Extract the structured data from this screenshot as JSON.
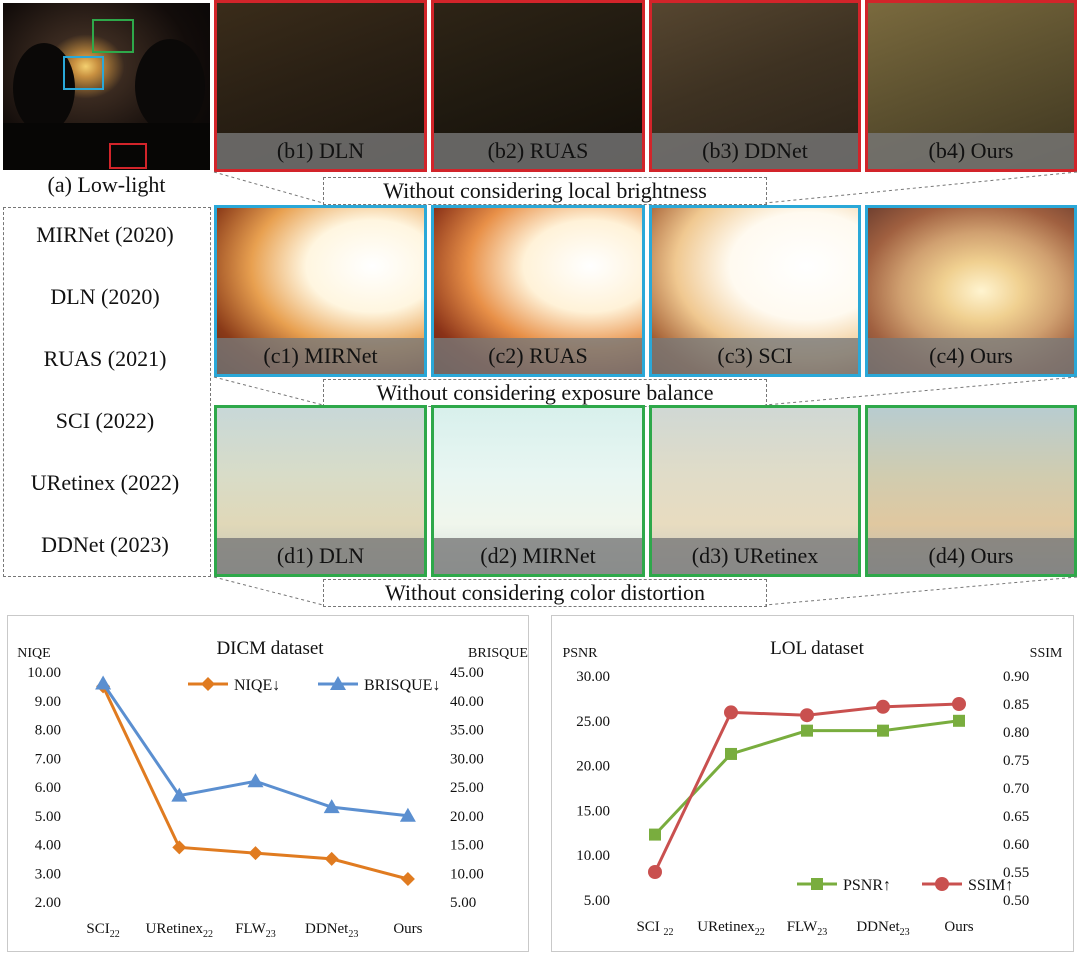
{
  "figure": {
    "low_light_caption": "(a) Low-light",
    "rows": [
      {
        "note": "Without considering local brightness",
        "captions": [
          "(b1) DLN",
          "(b2) RUAS",
          "(b3) DDNet",
          "(b4) Ours"
        ],
        "border": "#d2242a"
      },
      {
        "note": "Without considering exposure balance",
        "captions": [
          "(c1) MIRNet",
          "(c2) RUAS",
          "(c3) SCI",
          "(c4) Ours"
        ],
        "border": "#2aa8d8"
      },
      {
        "note": "Without considering color distortion",
        "captions": [
          "(d1) DLN",
          "(d2) MIRNet",
          "(d3) URetinex",
          "(d4) Ours"
        ],
        "border": "#2ea84a"
      }
    ],
    "methods": [
      "MIRNet (2020)",
      "DLN (2020)",
      "RUAS (2021)",
      "SCI (2022)",
      "URetinex (2022)",
      "DDNet (2023)"
    ]
  },
  "chart_data": [
    {
      "type": "line",
      "title": "DICM dataset",
      "ylabel_left": "NIQE",
      "ylabel_right": "BRISQUE",
      "categories": [
        {
          "base": "SCI",
          "sub": "22"
        },
        {
          "base": "URetinex",
          "sub": "22"
        },
        {
          "base": "FLW",
          "sub": "23"
        },
        {
          "base": "DDNet",
          "sub": "23"
        },
        {
          "base": "Ours",
          "sub": ""
        }
      ],
      "left_axis": {
        "min": 2.0,
        "max": 10.0,
        "step": 1.0,
        "ticks": [
          "2.00",
          "3.00",
          "4.00",
          "5.00",
          "6.00",
          "7.00",
          "8.00",
          "9.00",
          "10.00"
        ]
      },
      "right_axis": {
        "min": 5.0,
        "max": 45.0,
        "step": 5.0,
        "ticks": [
          "5.00",
          "10.00",
          "15.00",
          "20.00",
          "25.00",
          "30.00",
          "35.00",
          "40.00",
          "45.00"
        ]
      },
      "series": [
        {
          "name": "NIQE↓",
          "axis": "left",
          "color": "#e07b20",
          "marker": "diamond",
          "values": [
            9.5,
            3.9,
            3.7,
            3.5,
            2.8
          ]
        },
        {
          "name": "BRISQUE↓",
          "axis": "right",
          "color": "#5b8fd0",
          "marker": "triangle",
          "values": [
            43.0,
            23.5,
            26.0,
            21.5,
            20.0
          ]
        }
      ],
      "legend": "top-right",
      "grid": false
    },
    {
      "type": "line",
      "title": "LOL dataset",
      "ylabel_left": "PSNR",
      "ylabel_right": "SSIM",
      "categories": [
        {
          "base": "SCI ",
          "sub": "22"
        },
        {
          "base": "URetinex",
          "sub": "22"
        },
        {
          "base": "FLW",
          "sub": "23"
        },
        {
          "base": "DDNet",
          "sub": "23"
        },
        {
          "base": "Ours",
          "sub": ""
        }
      ],
      "left_axis": {
        "min": 5.0,
        "max": 30.0,
        "step": 5.0,
        "ticks": [
          "5.00",
          "10.00",
          "15.00",
          "20.00",
          "25.00",
          "30.00"
        ]
      },
      "right_axis": {
        "min": 0.5,
        "max": 0.9,
        "step": 0.05,
        "ticks": [
          "0.50",
          "0.55",
          "0.60",
          "0.65",
          "0.70",
          "0.75",
          "0.80",
          "0.85",
          "0.90"
        ]
      },
      "series": [
        {
          "name": "PSNR↑",
          "axis": "left",
          "color": "#79ad3e",
          "marker": "square",
          "values": [
            12.3,
            21.3,
            23.9,
            23.9,
            25.0
          ]
        },
        {
          "name": "SSIM↑",
          "axis": "right",
          "color": "#c9504f",
          "marker": "circle",
          "values": [
            0.55,
            0.835,
            0.83,
            0.845,
            0.85
          ]
        }
      ],
      "legend": "bottom-right",
      "grid": false
    }
  ]
}
